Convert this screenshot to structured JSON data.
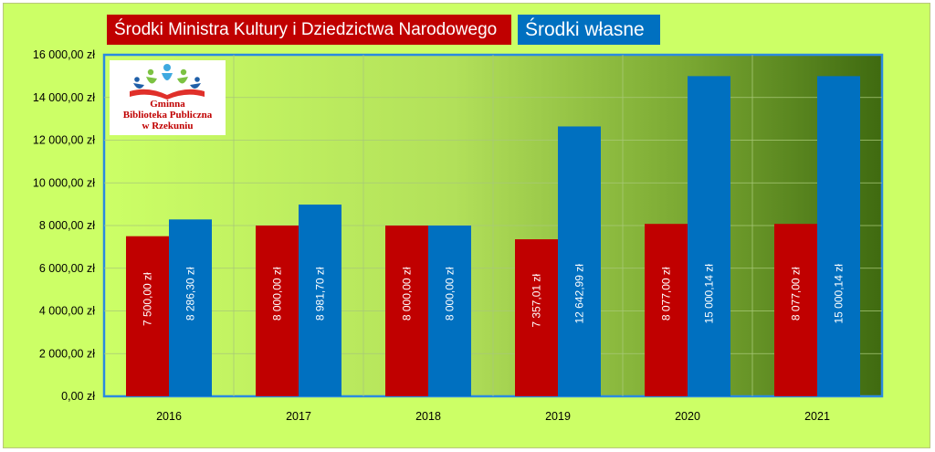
{
  "chart_data": {
    "type": "bar",
    "categories": [
      "2016",
      "2017",
      "2018",
      "2019",
      "2020",
      "2021"
    ],
    "series": [
      {
        "name": "Środki Ministra Kultury i Dziedzictwa Narodowego",
        "values": [
          7500.0,
          8000.0,
          8000.0,
          7357.01,
          8077.0,
          8077.0
        ],
        "labels": [
          "7 500,00 zł",
          "8 000,00 zł",
          "8 000,00 zł",
          "7 357,01 zł",
          "8 077,00 zł",
          "8 077,00 zł"
        ],
        "color": "#c00000"
      },
      {
        "name": "Środki własne",
        "values": [
          8286.3,
          8981.7,
          8000.0,
          12642.99,
          15000.14,
          15000.14
        ],
        "labels": [
          "8 286,30 zł",
          "8 981,70 zł",
          "8 000,00 zł",
          "12 642,99 zł",
          "15 000,14 zł",
          "15 000,14 zł"
        ],
        "color": "#0070c0"
      }
    ],
    "ylim": [
      0,
      16000
    ],
    "yticks": [
      0,
      2000,
      4000,
      6000,
      8000,
      10000,
      12000,
      14000,
      16000
    ],
    "ytick_labels": [
      "0,00 zł",
      "2 000,00 zł",
      "4 000,00 zł",
      "6 000,00 zł",
      "8 000,00 zł",
      "10 000,00 zł",
      "12 000,00 zł",
      "14 000,00 zł",
      "16 000,00 zł"
    ],
    "title": "",
    "xlabel": "",
    "ylabel": "",
    "grid": true,
    "legend_position": "top-left"
  },
  "logo": {
    "lines": [
      "Gminna",
      "Biblioteka Publiczna",
      "w Rzekuniu"
    ]
  },
  "colors": {
    "background": "#ccff66",
    "plot_gradient_start": "#ccff66",
    "plot_gradient_end": "#3f6a10",
    "plot_border": "#2a8ae0",
    "grid": "#b0d080"
  }
}
